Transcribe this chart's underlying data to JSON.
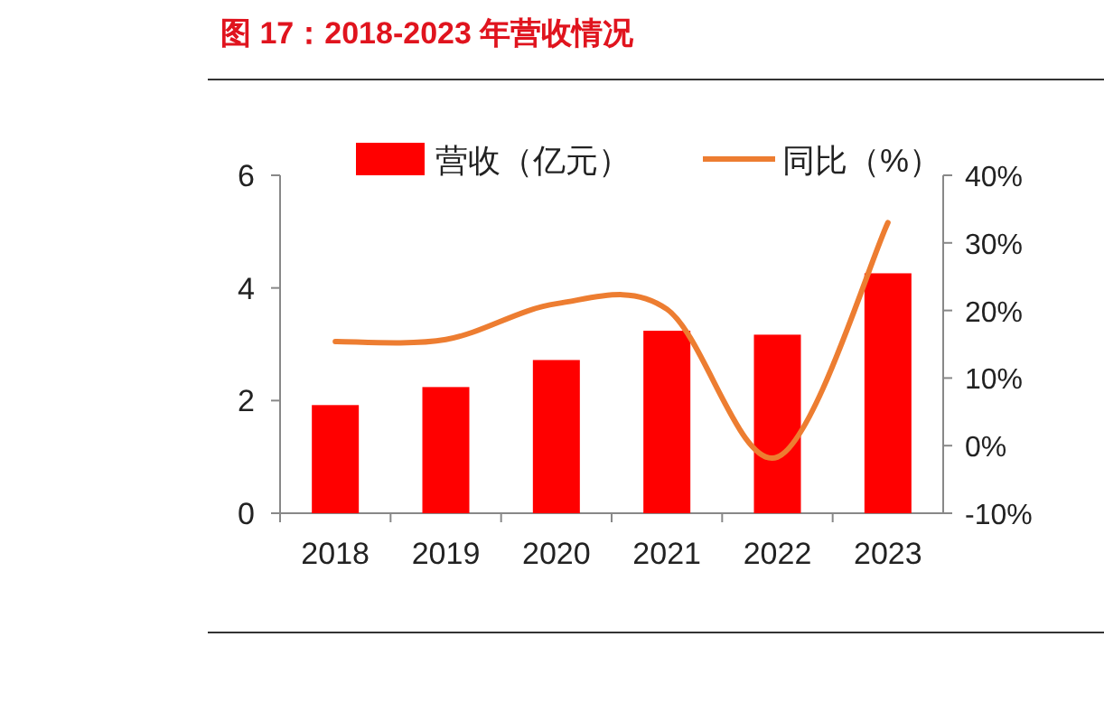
{
  "chart_data": {
    "type": "bar",
    "title": "图 17：2018-2023 年营收情况",
    "categories": [
      "2018",
      "2019",
      "2020",
      "2021",
      "2022",
      "2023"
    ],
    "series": [
      {
        "name": "营收（亿元）",
        "color": "#ff0000",
        "values": [
          1.92,
          2.24,
          2.72,
          3.24,
          3.17,
          4.26
        ]
      },
      {
        "name": "同比（%）",
        "type": "line",
        "axis": "y2",
        "color": "#ed7d31",
        "values": [
          15.4,
          15.7,
          21.0,
          20.2,
          -1.7,
          33.0
        ]
      }
    ],
    "ylim": [
      0,
      6
    ],
    "yticks": [
      0,
      2,
      4,
      6
    ],
    "y2lim": [
      -10,
      40
    ],
    "y2ticks": [
      {
        "value": -10,
        "label": "-10%"
      },
      {
        "value": 0,
        "label": "0%"
      },
      {
        "value": 10,
        "label": "10%"
      },
      {
        "value": 20,
        "label": "20%"
      },
      {
        "value": 30,
        "label": "30%"
      },
      {
        "value": 40,
        "label": "40%"
      }
    ],
    "legend": "top",
    "grid": false,
    "marker": "none",
    "line_style": "solid"
  }
}
